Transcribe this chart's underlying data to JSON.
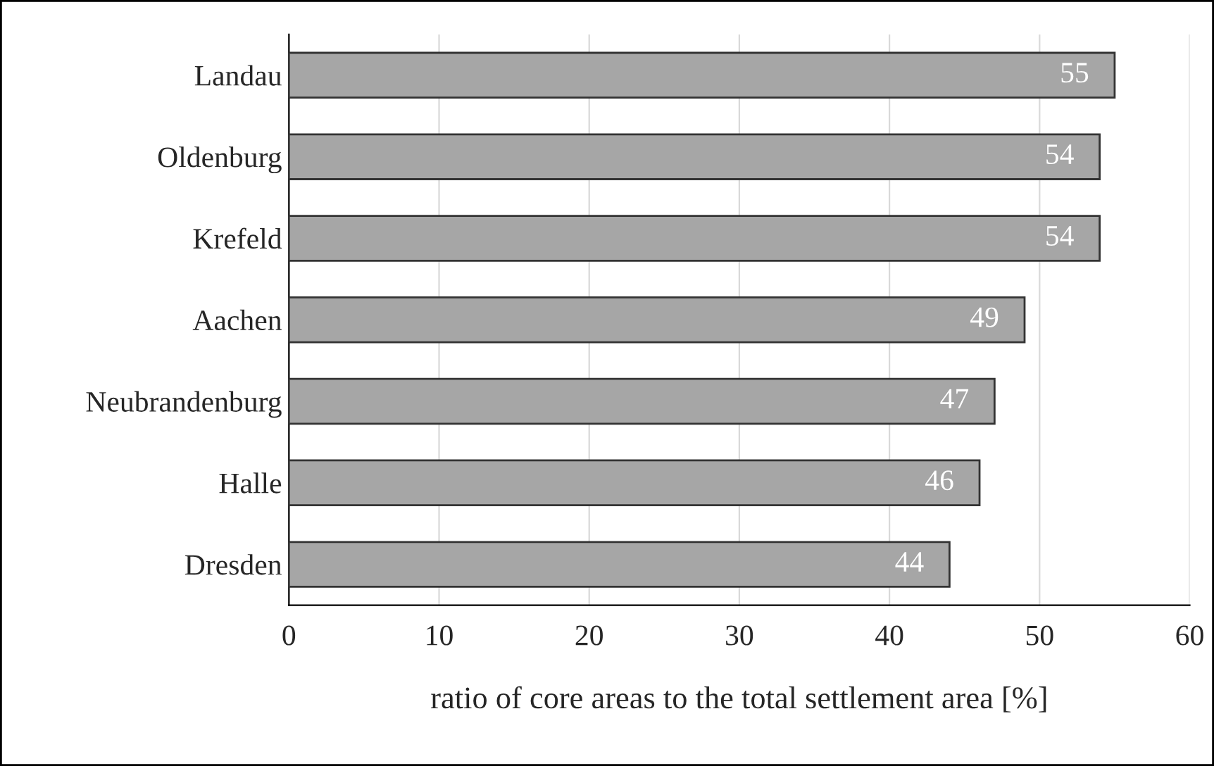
{
  "chart_data": {
    "type": "bar",
    "orientation": "horizontal",
    "xlabel": "ratio of core areas to the total settlement area [%]",
    "categories": [
      "Landau",
      "Oldenburg",
      "Krefeld",
      "Aachen",
      "Neubrandenburg",
      "Halle",
      "Dresden"
    ],
    "values": [
      55,
      54,
      54,
      49,
      47,
      46,
      44
    ],
    "color": "#a6a6a6",
    "xlim": [
      0,
      60
    ],
    "xticks": [
      0,
      10,
      20,
      30,
      40,
      50,
      60
    ],
    "grid": "x",
    "data_labels": true,
    "legend": false
  }
}
